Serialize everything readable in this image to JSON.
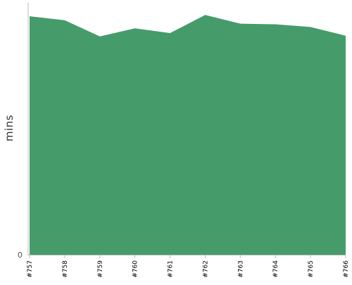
{
  "chart_data": {
    "type": "area",
    "title": "",
    "xlabel": "",
    "ylabel": "mins",
    "categories": [
      "#757",
      "#758",
      "#759",
      "#760",
      "#761",
      "#762",
      "#763",
      "#764",
      "#765",
      "#766"
    ],
    "series": [
      {
        "values": [
          35.5,
          34.9,
          32.5,
          33.7,
          33.0,
          35.7,
          34.4,
          34.3,
          33.9,
          32.6
        ]
      }
    ],
    "x_ticks": [
      "#757",
      "#758",
      "#759",
      "#760",
      "#761",
      "#762",
      "#763",
      "#764",
      "#765",
      "#766"
    ],
    "y_ticks": [
      {
        "value": 0,
        "label": "0"
      }
    ],
    "ylim": [
      0,
      37.5
    ],
    "grid": false,
    "legend": "none",
    "colors": {
      "area_fill": "#469b6b",
      "axis": "#bbbbbb",
      "ylabel_text": "#333333",
      "tick_text": "#000000"
    }
  }
}
